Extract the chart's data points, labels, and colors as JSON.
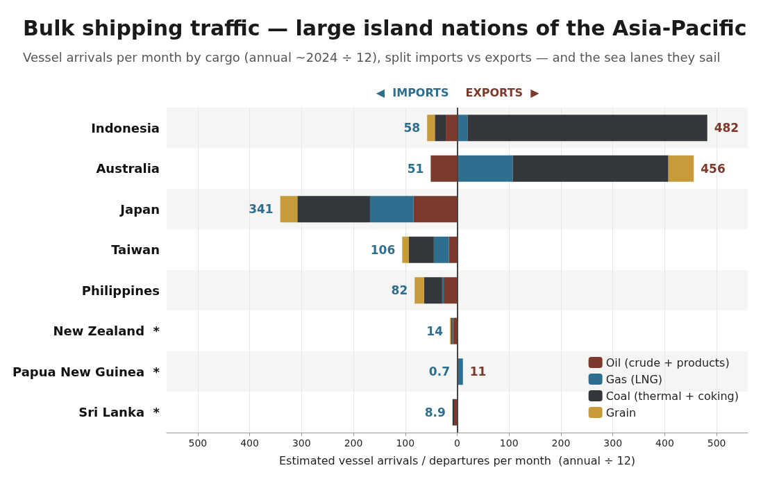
{
  "chart_data": {
    "type": "bar",
    "orientation": "horizontal",
    "stacked": true,
    "title": "Bulk shipping traffic — large island nations of the Asia-Pacific",
    "subtitle": "Vessel arrivals per month by cargo (annual ~2024 ÷ 12), split imports vs exports — and the sea lanes they sail",
    "xlabel": "Estimated vessel arrivals / departures per month  (annual ÷ 12)",
    "annotations": [
      "◀  IMPORTS",
      "EXPORTS  ▶"
    ],
    "categories": [
      "Indonesia",
      "Australia",
      "Japan",
      "Taiwan",
      "Philippines",
      "New Zealand  *",
      "Papua New Guinea  *",
      "Sri Lanka  *"
    ],
    "series": [
      {
        "name": "Oil (crude + products)",
        "color": "#7b3a2c",
        "values": [
          -22,
          -51,
          -84,
          -16,
          -26,
          -8,
          -0.7,
          -6
        ]
      },
      {
        "name": "Gas (LNG)",
        "color": "#2e6e8e",
        "values": [
          null,
          null,
          -84,
          -29,
          -3,
          -1,
          null,
          null
        ]
      },
      {
        "name": "Coal (thermal + coking)",
        "color": "#33363b",
        "values": [
          -21,
          null,
          -140,
          -48,
          -35,
          -3,
          null,
          -3
        ]
      },
      {
        "name": "Grain",
        "color": "#c89b3a",
        "values": [
          -15,
          null,
          -33,
          -13,
          -18,
          -2,
          null,
          null
        ]
      },
      {
        "color": "#7b3a2c",
        "values": [
          null,
          null,
          null,
          null,
          null,
          null,
          null,
          null
        ]
      },
      {
        "color": "#2e6e8e",
        "values": [
          20,
          107,
          null,
          null,
          null,
          null,
          11,
          null
        ]
      },
      {
        "color": "#33363b",
        "values": [
          462,
          300,
          null,
          null,
          null,
          null,
          null,
          null
        ]
      },
      {
        "color": "#c89b3a",
        "values": [
          null,
          49,
          null,
          null,
          null,
          null,
          null,
          null
        ]
      }
    ],
    "totals": [
      [
        "58",
        "482"
      ],
      [
        "51",
        "456"
      ],
      [
        "341",
        null
      ],
      [
        "106",
        null
      ],
      [
        "82",
        null
      ],
      [
        "14",
        null
      ],
      [
        "0.7",
        "11"
      ],
      [
        "8.9",
        null
      ]
    ],
    "xlim": [
      -560,
      560
    ],
    "xticks": [
      {
        "value": -500,
        "label": "500"
      },
      {
        "value": -400,
        "label": "400"
      },
      {
        "value": -300,
        "label": "300"
      },
      {
        "value": -200,
        "label": "200"
      },
      {
        "value": -100,
        "label": "100"
      },
      0,
      100,
      200,
      300,
      400,
      500
    ],
    "ref_lines": [
      {
        "axis": "x",
        "value": 0,
        "color": "#444444"
      }
    ],
    "grid": "x",
    "legend": "bottom right"
  }
}
